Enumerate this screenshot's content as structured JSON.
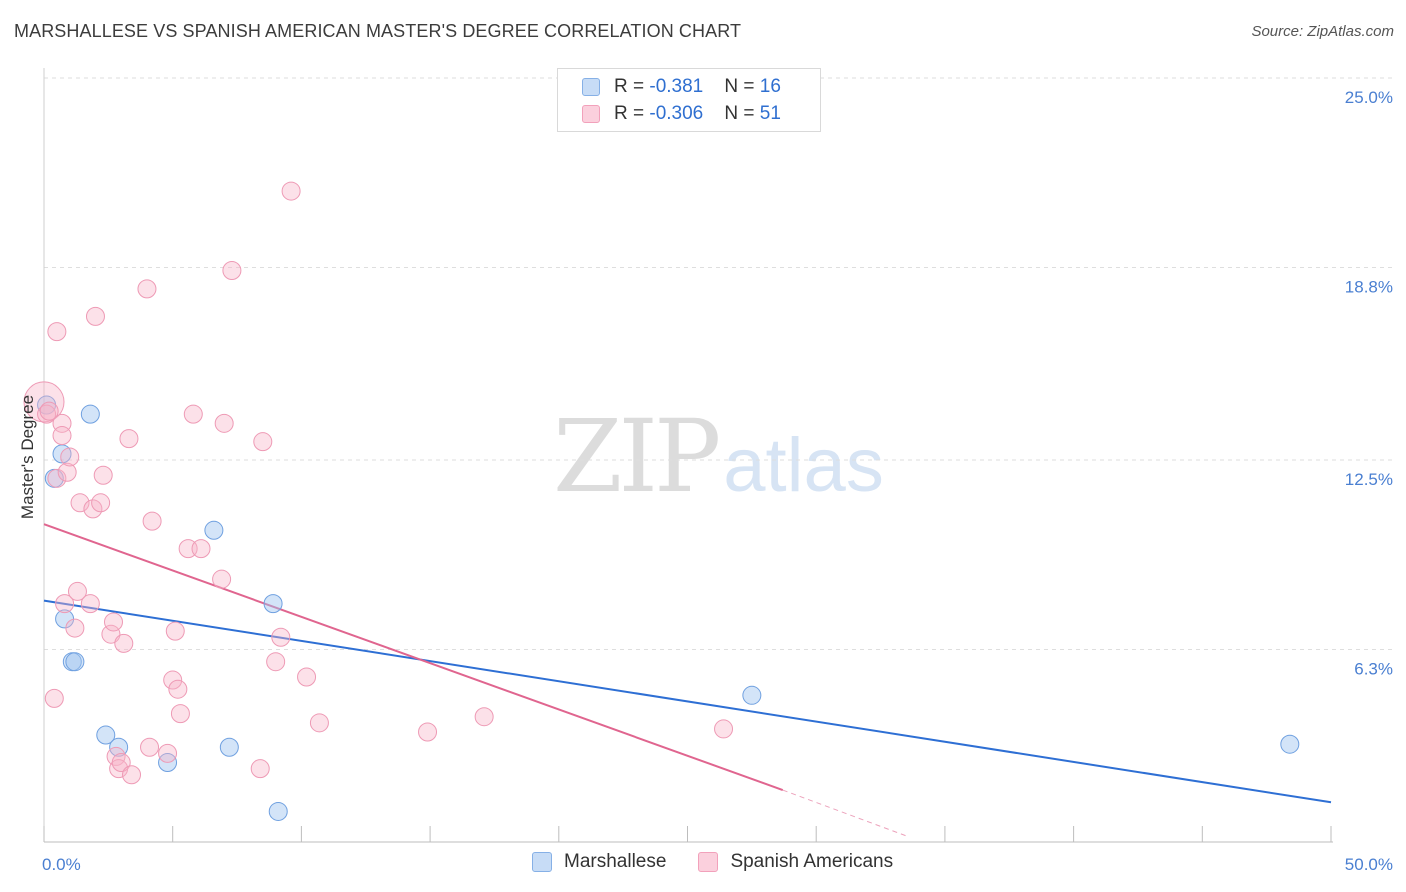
{
  "title": "MARSHALLESE VS SPANISH AMERICAN MASTER'S DEGREE CORRELATION CHART",
  "source": "Source: ZipAtlas.com",
  "watermark": {
    "zip": "ZIP",
    "atlas": "atlas"
  },
  "legend": {
    "rows": [
      {
        "r_label": "R = ",
        "r_value": "-0.381",
        "n_label": "N = ",
        "n_value": "16"
      },
      {
        "r_label": "R = ",
        "r_value": "-0.306",
        "n_label": "N = ",
        "n_value": "51"
      }
    ]
  },
  "chart_data": {
    "type": "scatter",
    "ylabel": "Master's Degree",
    "xlim": [
      0,
      50
    ],
    "ylim": [
      0,
      25
    ],
    "x_tick_labels": [
      "0.0%",
      "50.0%"
    ],
    "y_ticks": [
      {
        "value": 25.0,
        "label": "25.0%"
      },
      {
        "value": 18.8,
        "label": "18.8%"
      },
      {
        "value": 12.5,
        "label": "12.5%"
      },
      {
        "value": 6.3,
        "label": "6.3%"
      }
    ],
    "grid": true,
    "legend_position": "bottom",
    "series": [
      {
        "name": "Marshallese",
        "color": "#9ec4ef",
        "line_color": "#2e6fd4",
        "points": [
          [
            0.1,
            14.3
          ],
          [
            0.4,
            11.9
          ],
          [
            0.7,
            12.7
          ],
          [
            1.8,
            14.0
          ],
          [
            0.8,
            7.3
          ],
          [
            1.1,
            5.9
          ],
          [
            1.2,
            5.9
          ],
          [
            2.4,
            3.5
          ],
          [
            2.9,
            3.1
          ],
          [
            4.8,
            2.6
          ],
          [
            6.6,
            10.2
          ],
          [
            7.2,
            3.1
          ],
          [
            8.9,
            7.8
          ],
          [
            9.1,
            1.0
          ],
          [
            27.5,
            4.8
          ],
          [
            48.4,
            3.2
          ]
        ],
        "trend": {
          "x0": 0,
          "y0": 7.9,
          "x1": 50,
          "y1": 1.3
        }
      },
      {
        "name": "Spanish Americans",
        "color": "#f7b4c8",
        "line_color": "#e0658f",
        "points": [
          [
            0.0,
            14.4
          ],
          [
            0.1,
            14.0
          ],
          [
            0.2,
            14.1
          ],
          [
            0.5,
            16.7
          ],
          [
            0.5,
            11.9
          ],
          [
            0.7,
            13.7
          ],
          [
            0.7,
            13.3
          ],
          [
            0.8,
            7.8
          ],
          [
            0.9,
            12.1
          ],
          [
            1.0,
            12.6
          ],
          [
            1.2,
            7.0
          ],
          [
            1.3,
            8.2
          ],
          [
            1.4,
            11.1
          ],
          [
            1.8,
            7.8
          ],
          [
            1.9,
            10.9
          ],
          [
            2.0,
            17.2
          ],
          [
            2.2,
            11.1
          ],
          [
            2.3,
            12.0
          ],
          [
            2.6,
            6.8
          ],
          [
            2.7,
            7.2
          ],
          [
            2.8,
            2.8
          ],
          [
            2.9,
            2.4
          ],
          [
            3.0,
            2.6
          ],
          [
            3.1,
            6.5
          ],
          [
            3.3,
            13.2
          ],
          [
            3.4,
            2.2
          ],
          [
            4.0,
            18.1
          ],
          [
            4.2,
            10.5
          ],
          [
            4.1,
            3.1
          ],
          [
            4.8,
            2.9
          ],
          [
            5.0,
            5.3
          ],
          [
            5.1,
            6.9
          ],
          [
            5.2,
            5.0
          ],
          [
            5.3,
            4.2
          ],
          [
            5.6,
            9.6
          ],
          [
            5.8,
            14.0
          ],
          [
            6.1,
            9.6
          ],
          [
            6.9,
            8.6
          ],
          [
            7.0,
            13.7
          ],
          [
            7.3,
            18.7
          ],
          [
            8.5,
            13.1
          ],
          [
            8.4,
            2.4
          ],
          [
            9.0,
            5.9
          ],
          [
            9.2,
            6.7
          ],
          [
            9.6,
            21.3
          ],
          [
            10.2,
            5.4
          ],
          [
            10.7,
            3.9
          ],
          [
            14.9,
            3.6
          ],
          [
            17.1,
            4.1
          ],
          [
            26.4,
            3.7
          ],
          [
            0.4,
            4.7
          ]
        ],
        "trend": {
          "x0": 0,
          "y0": 10.4,
          "x1": 28.7,
          "y1": 1.7
        },
        "trend_dashed": {
          "x0": 28.7,
          "y0": 1.7,
          "x1": 33.5,
          "y1": 0.2
        }
      }
    ]
  }
}
